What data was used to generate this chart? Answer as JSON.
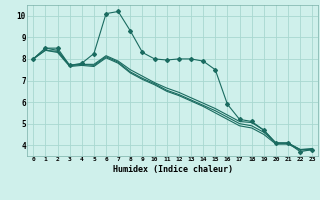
{
  "xlabel": "Humidex (Indice chaleur)",
  "bg_color": "#cff0eb",
  "grid_color": "#a8d8d0",
  "line_color": "#1a6b60",
  "xlim": [
    -0.5,
    23.5
  ],
  "ylim": [
    3.5,
    10.5
  ],
  "xticks": [
    0,
    1,
    2,
    3,
    4,
    5,
    6,
    7,
    8,
    9,
    10,
    11,
    12,
    13,
    14,
    15,
    16,
    17,
    18,
    19,
    20,
    21,
    22,
    23
  ],
  "yticks": [
    4,
    5,
    6,
    7,
    8,
    9,
    10
  ],
  "series": [
    [
      8.0,
      8.5,
      8.5,
      7.7,
      7.8,
      8.25,
      10.1,
      10.2,
      9.3,
      8.3,
      8.0,
      7.95,
      8.0,
      8.0,
      7.9,
      7.5,
      5.9,
      5.2,
      5.1,
      4.7,
      4.1,
      4.1,
      3.7,
      3.8
    ],
    [
      8.0,
      8.5,
      8.4,
      7.7,
      7.75,
      7.75,
      8.15,
      7.9,
      7.5,
      7.2,
      6.9,
      6.65,
      6.45,
      6.2,
      5.95,
      5.7,
      5.4,
      5.1,
      5.05,
      4.7,
      4.1,
      4.1,
      3.8,
      3.85
    ],
    [
      8.0,
      8.4,
      8.35,
      7.7,
      7.75,
      7.7,
      8.1,
      7.85,
      7.4,
      7.1,
      6.85,
      6.55,
      6.35,
      6.1,
      5.85,
      5.6,
      5.3,
      5.0,
      4.9,
      4.6,
      4.1,
      4.1,
      3.8,
      3.8
    ],
    [
      8.0,
      8.4,
      8.3,
      7.65,
      7.7,
      7.65,
      8.05,
      7.8,
      7.35,
      7.05,
      6.8,
      6.5,
      6.3,
      6.05,
      5.8,
      5.5,
      5.2,
      4.9,
      4.8,
      4.5,
      4.05,
      4.05,
      3.78,
      3.78
    ]
  ]
}
